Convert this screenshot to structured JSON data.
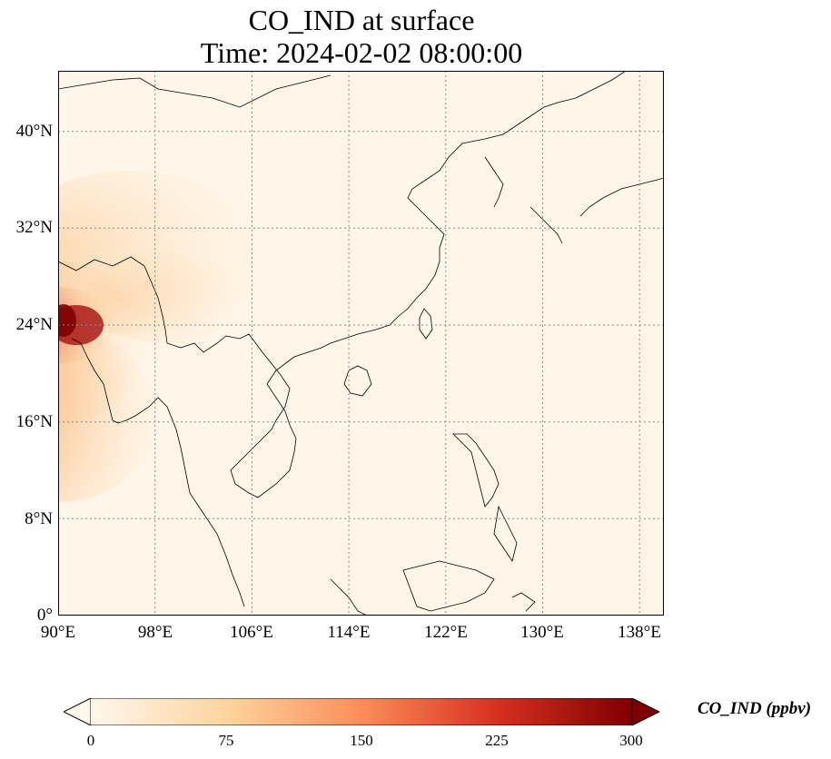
{
  "title": {
    "line1": "CO_IND at surface",
    "line2": "Time: 2024-02-02 08:00:00"
  },
  "lat_ticks": [
    "0°",
    "8°N",
    "16°N",
    "24°N",
    "32°N",
    "40°N"
  ],
  "lon_ticks": [
    "90°E",
    "98°E",
    "106°E",
    "114°E",
    "122°E",
    "130°E",
    "138°E"
  ],
  "colorbar": {
    "label": "CO_IND (ppbv)",
    "ticks": [
      "0",
      "75",
      "150",
      "225",
      "300"
    ],
    "colors": [
      "#fff7ec",
      "#fdd49e",
      "#fc8d59",
      "#d7301f",
      "#7f0000"
    ],
    "extend": "both"
  },
  "map": {
    "extent": {
      "lon_min": 90,
      "lon_max": 140,
      "lat_min": 0,
      "lat_max": 45
    },
    "background_color": "#fff5e8",
    "coastline_color": "#000000",
    "gridline_style": "dotted",
    "gridline_color": "#888888"
  }
}
